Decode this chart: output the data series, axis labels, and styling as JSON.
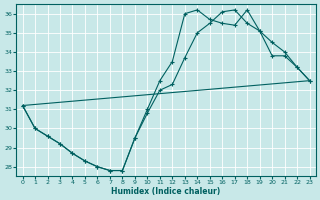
{
  "xlabel": "Humidex (Indice chaleur)",
  "bg_color": "#c8e8e8",
  "line_color": "#006060",
  "grid_color": "#b0d0d0",
  "xlim": [
    -0.5,
    23.5
  ],
  "ylim": [
    27.5,
    36.5
  ],
  "yticks": [
    28,
    29,
    30,
    31,
    32,
    33,
    34,
    35,
    36
  ],
  "xticks": [
    0,
    1,
    2,
    3,
    4,
    5,
    6,
    7,
    8,
    9,
    10,
    11,
    12,
    13,
    14,
    15,
    16,
    17,
    18,
    19,
    20,
    21,
    22,
    23
  ],
  "line1_x": [
    0,
    1,
    2,
    3,
    4,
    5,
    6,
    7,
    8,
    9,
    10,
    11,
    12,
    13,
    14,
    15,
    16,
    17,
    18,
    19,
    20,
    21,
    22,
    23
  ],
  "line1_y": [
    31.2,
    30.0,
    29.6,
    29.2,
    28.7,
    28.3,
    28.0,
    27.8,
    27.8,
    29.5,
    31.0,
    32.5,
    33.5,
    36.0,
    36.2,
    35.7,
    35.5,
    35.4,
    36.2,
    35.1,
    33.8,
    33.8,
    33.2,
    32.5
  ],
  "line2_x": [
    0,
    1,
    2,
    3,
    4,
    5,
    6,
    7,
    8,
    9,
    10,
    11,
    12,
    13,
    14,
    15,
    16,
    17,
    18,
    19,
    20,
    21,
    22,
    23
  ],
  "line2_y": [
    31.2,
    30.0,
    29.6,
    29.2,
    28.7,
    28.3,
    28.0,
    27.8,
    27.8,
    29.5,
    30.8,
    32.0,
    32.3,
    33.7,
    35.0,
    35.5,
    36.1,
    36.2,
    35.5,
    35.1,
    34.5,
    34.0,
    33.2,
    32.5
  ],
  "line3_x": [
    0,
    23
  ],
  "line3_y": [
    31.2,
    32.5
  ]
}
